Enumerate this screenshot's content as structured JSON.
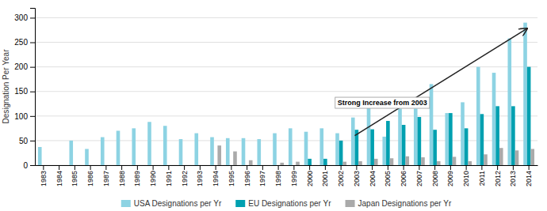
{
  "chart_data": {
    "type": "bar",
    "categories": [
      "1983",
      "1984",
      "1985",
      "1986",
      "1987",
      "1988",
      "1989",
      "1990",
      "1991",
      "1992",
      "1993",
      "1994",
      "1995",
      "1996",
      "1997",
      "1998",
      "1999",
      "2000",
      "2001",
      "2002",
      "2003",
      "2004",
      "2005",
      "2006",
      "2007",
      "2008",
      "2009",
      "2010",
      "2011",
      "2012",
      "2013",
      "2014"
    ],
    "series": [
      {
        "name": "USA Designations per Yr",
        "color": "#8dd3e3",
        "values": [
          37,
          0,
          50,
          33,
          57,
          70,
          75,
          88,
          80,
          53,
          65,
          57,
          55,
          55,
          53,
          65,
          75,
          68,
          75,
          65,
          97,
          125,
          58,
          115,
          115,
          165,
          106,
          128,
          200,
          188,
          258,
          290
        ]
      },
      {
        "name": "EU Designations per Yr",
        "color": "#00a0b0",
        "values": [
          0,
          0,
          0,
          0,
          0,
          0,
          0,
          0,
          0,
          0,
          0,
          0,
          0,
          0,
          0,
          0,
          0,
          13,
          13,
          50,
          72,
          73,
          90,
          82,
          98,
          72,
          106,
          75,
          104,
          120,
          120,
          200
        ]
      },
      {
        "name": "Japan Designations per Yr",
        "color": "#aaaaaa",
        "values": [
          0,
          0,
          0,
          0,
          0,
          0,
          0,
          0,
          0,
          0,
          0,
          40,
          28,
          10,
          0,
          5,
          7,
          0,
          0,
          7,
          8,
          13,
          14,
          18,
          16,
          8,
          17,
          8,
          22,
          35,
          30,
          33
        ]
      }
    ],
    "ylabel": "Designation Per Year",
    "ylim": [
      0,
      320
    ],
    "yticks": [
      0,
      50,
      100,
      150,
      200,
      250,
      300
    ],
    "grid": true,
    "legend": "bottom",
    "annotations": [
      {
        "text": "Strong Increase from 2003",
        "categories": [
          "2003",
          "2014"
        ],
        "values": [
          60,
          278
        ]
      }
    ]
  }
}
